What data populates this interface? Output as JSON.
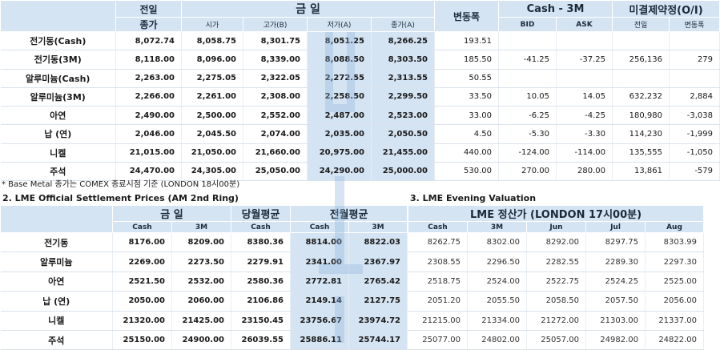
{
  "table1": {
    "headers": {
      "prev": "전일",
      "prev_sub": "종가",
      "today": "금 일",
      "open": "시가",
      "high": "고가(B)",
      "low": "저가(A)",
      "close": "종가(A)",
      "change": "변동폭",
      "cash3m": "Cash - 3M",
      "bid": "BID",
      "ask": "ASK",
      "oi": "미결제약정(O/I)",
      "oi_prev": "전일",
      "oi_change": "변동폭"
    },
    "rows": [
      {
        "name": "전기동(Cash)",
        "prev": "8,072.74",
        "open": "8,058.75",
        "high": "8,301.75",
        "low": "8,051.25",
        "close": "8,266.25",
        "change": "193.51",
        "bid": "",
        "ask": "",
        "oi_prev": "",
        "oi_change": ""
      },
      {
        "name": "전기동(3M)",
        "prev": "8,118.00",
        "open": "8,096.00",
        "high": "8,339.00",
        "low": "8,088.50",
        "close": "8,303.50",
        "change": "185.50",
        "bid": "-41.25",
        "ask": "-37.25",
        "oi_prev": "256,136",
        "oi_change": "279"
      },
      {
        "name": "알루미늄(Cash)",
        "prev": "2,263.00",
        "open": "2,275.05",
        "high": "2,322.05",
        "low": "2,272.55",
        "close": "2,313.55",
        "change": "50.55",
        "bid": "",
        "ask": "",
        "oi_prev": "",
        "oi_change": ""
      },
      {
        "name": "알루미늄(3M)",
        "prev": "2,266.00",
        "open": "2,261.00",
        "high": "2,308.00",
        "low": "2,258.50",
        "close": "2,299.50",
        "change": "33.50",
        "bid": "10.05",
        "ask": "14.05",
        "oi_prev": "632,232",
        "oi_change": "2,884"
      },
      {
        "name": "아연",
        "prev": "2,490.00",
        "open": "2,500.00",
        "high": "2,552.00",
        "low": "2,487.00",
        "close": "2,523.00",
        "change": "33.00",
        "bid": "-6.25",
        "ask": "-4.25",
        "oi_prev": "180,980",
        "oi_change": "-3,038"
      },
      {
        "name": "납 (연)",
        "prev": "2,046.00",
        "open": "2,045.50",
        "high": "2,074.00",
        "low": "2,035.00",
        "close": "2,050.50",
        "change": "4.50",
        "bid": "-5.30",
        "ask": "-3.30",
        "oi_prev": "114,230",
        "oi_change": "-1,999"
      },
      {
        "name": "니켈",
        "prev": "21,015.00",
        "open": "21,050.00",
        "high": "21,660.00",
        "low": "20,975.00",
        "close": "21,455.00",
        "change": "440.00",
        "bid": "-124.00",
        "ask": "-114.00",
        "oi_prev": "135,555",
        "oi_change": "-1,050"
      },
      {
        "name": "주석",
        "prev": "24,470.00",
        "open": "24,305.00",
        "high": "25,050.00",
        "low": "24,290.00",
        "close": "25,000.00",
        "change": "530.00",
        "bid": "270.00",
        "ask": "280.00",
        "oi_prev": "13,861",
        "oi_change": "-579"
      }
    ]
  },
  "note": "* Base Metal 종가는 COMEX 종료시점 기준 (LONDON 18시00분)",
  "section2": {
    "title": "2. LME Official Settlement Prices (AM 2nd Ring)",
    "headers": {
      "today": "금 일",
      "month_avg": "당월평균",
      "prev_month_avg": "전월평균",
      "cash": "Cash",
      "m3": "3M"
    },
    "rows": [
      {
        "name": "전기동",
        "cash": "8176.00",
        "m3": "8209.00",
        "avg": "8380.36",
        "pcash": "8814.00",
        "p3m": "8822.03"
      },
      {
        "name": "알루미늄",
        "cash": "2269.00",
        "m3": "2273.50",
        "avg": "2279.91",
        "pcash": "2341.00",
        "p3m": "2367.97"
      },
      {
        "name": "아연",
        "cash": "2521.50",
        "m3": "2532.00",
        "avg": "2580.36",
        "pcash": "2772.81",
        "p3m": "2765.42"
      },
      {
        "name": "납 (연)",
        "cash": "2050.00",
        "m3": "2060.00",
        "avg": "2106.86",
        "pcash": "2149.14",
        "p3m": "2127.75"
      },
      {
        "name": "니켈",
        "cash": "21320.00",
        "m3": "21425.00",
        "avg": "23150.45",
        "pcash": "23756.67",
        "p3m": "23974.72"
      },
      {
        "name": "주석",
        "cash": "25150.00",
        "m3": "24900.00",
        "avg": "26039.55",
        "pcash": "25886.11",
        "p3m": "25744.17"
      }
    ]
  },
  "section3": {
    "title": "3. LME Evening Valuation",
    "headers": {
      "valuation": "LME 정산가 (LONDON 17시00분)",
      "cash": "Cash",
      "m3": "3M",
      "jun": "Jun",
      "jul": "Jul",
      "aug": "Aug"
    },
    "rows": [
      {
        "cash": "8262.75",
        "m3": "8302.00",
        "jun": "8292.00",
        "jul": "8297.75",
        "aug": "8303.99"
      },
      {
        "cash": "2308.55",
        "m3": "2296.50",
        "jun": "2282.55",
        "jul": "2289.30",
        "aug": "2297.30"
      },
      {
        "cash": "2518.75",
        "m3": "2524.00",
        "jun": "2522.75",
        "jul": "2524.25",
        "aug": "2525.00"
      },
      {
        "cash": "2051.20",
        "m3": "2055.50",
        "jun": "2058.50",
        "jul": "2057.50",
        "aug": "2056.00"
      },
      {
        "cash": "21215.00",
        "m3": "21334.00",
        "jun": "21272.00",
        "jul": "21303.00",
        "aug": "21337.00"
      },
      {
        "cash": "25077.00",
        "m3": "24802.00",
        "jun": "25057.00",
        "jul": "24982.00",
        "aug": "24822.00"
      }
    ]
  }
}
